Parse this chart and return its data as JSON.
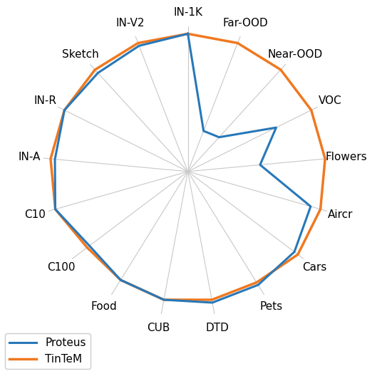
{
  "categories": [
    "IN-1K",
    "Far-OOD",
    "Near-OOD",
    "VOC",
    "Flowers",
    "Aircr",
    "Cars",
    "Pets",
    "DTD",
    "CUB",
    "Food",
    "C100",
    "C10",
    "IN-A",
    "IN-R",
    "Sketch",
    "IN-V2"
  ],
  "proteus": [
    0.95,
    0.3,
    0.32,
    0.68,
    0.5,
    0.88,
    0.92,
    0.92,
    0.92,
    0.9,
    0.88,
    0.85,
    0.95,
    0.92,
    0.95,
    0.92,
    0.93
  ],
  "tintem": [
    0.95,
    0.95,
    0.95,
    0.95,
    0.95,
    0.95,
    0.95,
    0.9,
    0.9,
    0.9,
    0.88,
    0.87,
    0.95,
    0.95,
    0.95,
    0.95,
    0.95
  ],
  "proteus_color": "#2878b8",
  "tintem_color": "#f07820",
  "legend_labels": [
    "Proteus",
    "TinTeM"
  ],
  "background_color": "#ffffff",
  "grid_color": "#c8c8c8",
  "linewidth_proteus": 2.2,
  "linewidth_tintem": 2.5,
  "label_fontsize": 11,
  "legend_fontsize": 11
}
